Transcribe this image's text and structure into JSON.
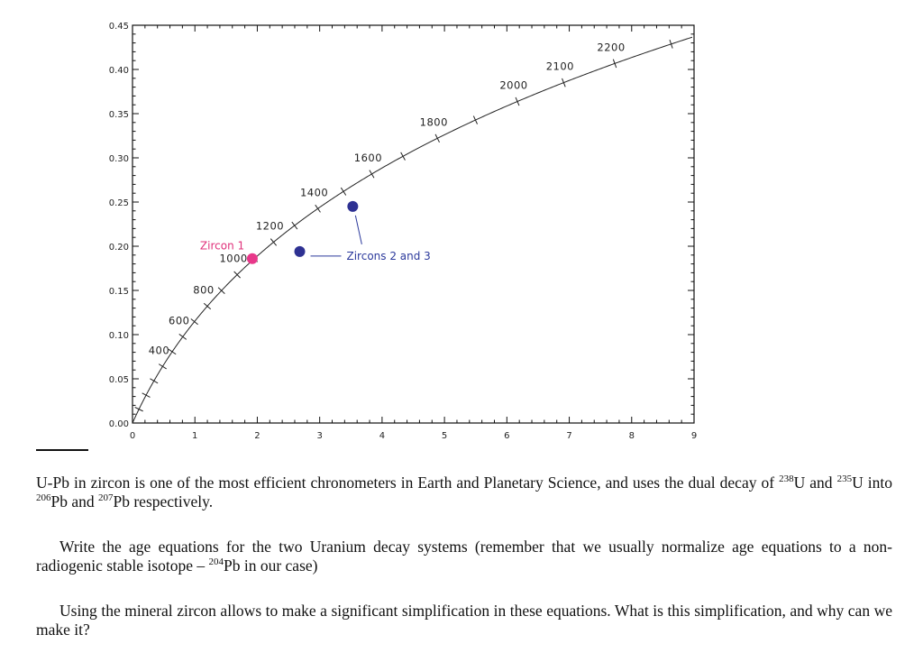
{
  "chart_data": {
    "type": "line",
    "title": "",
    "xlabel": "",
    "ylabel": "",
    "xlim": [
      0,
      9
    ],
    "ylim": [
      0,
      0.45
    ],
    "x_ticks": [
      "0",
      "1",
      "2",
      "3",
      "4",
      "5",
      "6",
      "7",
      "8",
      "9"
    ],
    "y_ticks": [
      "0.00",
      "0.05",
      "0.10",
      "0.15",
      "0.20",
      "0.25",
      "0.30",
      "0.35",
      "0.40",
      "0.45"
    ],
    "grid": false,
    "concordia": {
      "lambda238": 1.55125e-10,
      "lambda235": 9.8485e-10,
      "age_range_ma": [
        0,
        2480
      ],
      "tick_interval_ma": 100
    },
    "age_labels": [
      {
        "text": "400",
        "age": 400
      },
      {
        "text": "600",
        "age": 600
      },
      {
        "text": "800",
        "age": 800
      },
      {
        "text": "1000",
        "age": 1000
      },
      {
        "text": "1200",
        "age": 1200
      },
      {
        "text": "1400",
        "age": 1400
      },
      {
        "text": "1600",
        "age": 1600
      },
      {
        "text": "1800",
        "age": 1800
      },
      {
        "text": "2000",
        "age": 2000
      },
      {
        "text": "2100",
        "age": 2100
      },
      {
        "text": "2200",
        "age": 2200
      }
    ],
    "points": [
      {
        "name": "Zircon 1",
        "x": 1.92,
        "y": 0.186,
        "color": "#e8388a"
      },
      {
        "name": "Zircons 2 and 3",
        "x": 2.68,
        "y": 0.194,
        "color": "#2e3192"
      },
      {
        "name": "Zircons 2 and 3",
        "x": 3.53,
        "y": 0.245,
        "color": "#2e3192"
      }
    ],
    "annotations": {
      "zircon1": "Zircon 1",
      "zircons23": "Zircons 2 and 3"
    },
    "curve_color": "#222222"
  },
  "text": {
    "p1": {
      "a": "U-Pb in zircon is one of the most efficient chronometers in Earth and Planetary Science, and uses the dual decay of ",
      "sup1": "238",
      "b": "U and ",
      "sup2": "235",
      "c": "U into ",
      "sup3": "206",
      "d": "Pb and ",
      "sup4": "207",
      "e": "Pb respectively."
    },
    "p2": {
      "a": "Write the age equations for the two Uranium decay systems (remember that we usually normalize age equations to a non-radiogenic stable isotope – ",
      "sup1": "204",
      "b": "Pb in our case)"
    },
    "p3": {
      "a": "Using the mineral zircon allows to make a significant simplification in these equations. What is this simplification, and why can we make it?"
    }
  }
}
